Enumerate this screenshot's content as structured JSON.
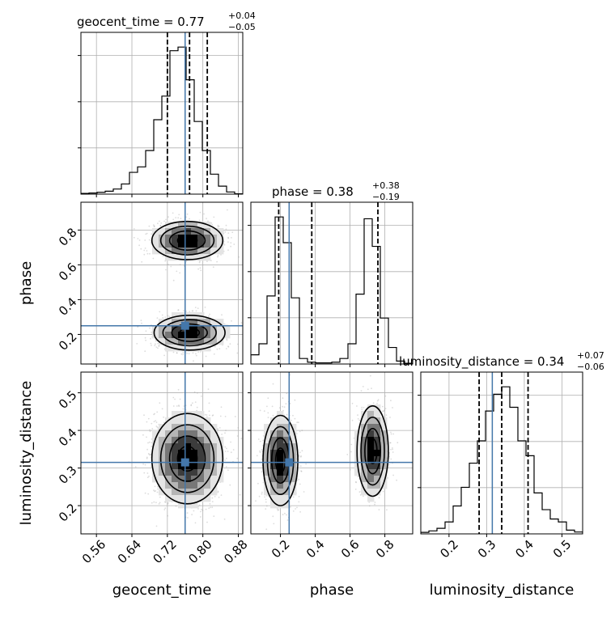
{
  "chart_data": {
    "type": "corner",
    "parameters": [
      "geocent_time",
      "phase",
      "luminosity_distance"
    ],
    "axis_labels": [
      "geocent_time",
      "phase",
      "luminosity_distance"
    ],
    "truths": [
      0.76,
      0.25,
      0.315
    ],
    "grid": true,
    "ranges": {
      "geocent_time": [
        0.525,
        0.89
      ],
      "phase": [
        0.03,
        0.96
      ],
      "luminosity_distance": [
        0.125,
        0.555
      ]
    },
    "ticks": {
      "geocent_time": [
        "0.56",
        "0.64",
        "0.72",
        "0.80",
        "0.88"
      ],
      "phase": [
        "0.2",
        "0.4",
        "0.6",
        "0.8"
      ],
      "luminosity_distance": [
        "0.2",
        "0.3",
        "0.4",
        "0.5"
      ]
    },
    "titles": [
      {
        "label": "geocent_time = 0.77",
        "plus": "+0.04",
        "minus": "−0.05",
        "median": 0.77,
        "lo": 0.72,
        "hi": 0.81
      },
      {
        "label": "phase = 0.38",
        "plus": "+0.38",
        "minus": "−0.19",
        "median": 0.38,
        "lo": 0.19,
        "hi": 0.76
      },
      {
        "label": "luminosity_distance = 0.34",
        "plus": "+0.07",
        "minus": "−0.06",
        "median": 0.34,
        "lo": 0.28,
        "hi": 0.41
      }
    ],
    "histograms": {
      "geocent_time": {
        "start": 0.525,
        "width": 0.01825,
        "counts": [
          2,
          3,
          5,
          8,
          14,
          28,
          60,
          75,
          120,
          205,
          270,
          395,
          405,
          315,
          200,
          120,
          55,
          22,
          6,
          1
        ]
      },
      "phase": {
        "start": 0.03,
        "width": 0.0465,
        "counts": [
          25,
          55,
          185,
          400,
          330,
          180,
          15,
          5,
          3,
          3,
          5,
          15,
          55,
          190,
          395,
          320,
          125,
          45,
          8,
          2
        ]
      },
      "luminosity_distance": {
        "start": 0.125,
        "width": 0.0215,
        "counts": [
          4,
          8,
          15,
          32,
          75,
          125,
          190,
          250,
          330,
          375,
          395,
          340,
          250,
          210,
          110,
          65,
          40,
          32,
          10,
          5
        ]
      }
    },
    "density_blobs": {
      "geocent_time_vs_phase": [
        {
          "cx": 0.765,
          "cy": 0.74,
          "sx": 0.04,
          "sy": 0.055,
          "n": 900
        },
        {
          "cx": 0.77,
          "cy": 0.21,
          "sx": 0.04,
          "sy": 0.05,
          "n": 900
        }
      ],
      "geocent_time_vs_luminosity_distance": [
        {
          "cx": 0.765,
          "cy": 0.325,
          "sx": 0.04,
          "sy": 0.06,
          "n": 1600
        }
      ],
      "phase_vs_luminosity_distance": [
        {
          "cx": 0.2,
          "cy": 0.32,
          "sx": 0.05,
          "sy": 0.06,
          "n": 850
        },
        {
          "cx": 0.73,
          "cy": 0.345,
          "sx": 0.045,
          "sy": 0.06,
          "n": 850
        }
      ]
    }
  }
}
